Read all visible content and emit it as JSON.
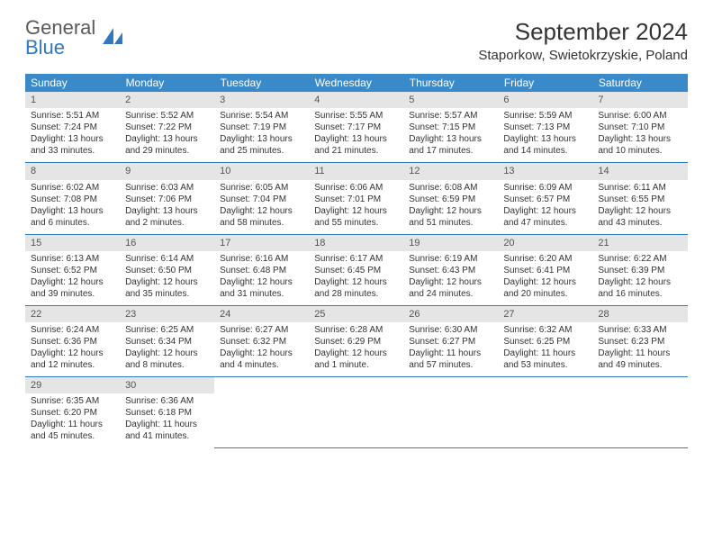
{
  "logo": {
    "general": "General",
    "blue": "Blue"
  },
  "title": "September 2024",
  "location": "Staporkow, Swietokrzyskie, Poland",
  "header_bg": "#3a8ac9",
  "day_names": [
    "Sunday",
    "Monday",
    "Tuesday",
    "Wednesday",
    "Thursday",
    "Friday",
    "Saturday"
  ],
  "days": [
    {
      "n": "1",
      "sr": "5:51 AM",
      "ss": "7:24 PM",
      "dl": "13 hours and 33 minutes."
    },
    {
      "n": "2",
      "sr": "5:52 AM",
      "ss": "7:22 PM",
      "dl": "13 hours and 29 minutes."
    },
    {
      "n": "3",
      "sr": "5:54 AM",
      "ss": "7:19 PM",
      "dl": "13 hours and 25 minutes."
    },
    {
      "n": "4",
      "sr": "5:55 AM",
      "ss": "7:17 PM",
      "dl": "13 hours and 21 minutes."
    },
    {
      "n": "5",
      "sr": "5:57 AM",
      "ss": "7:15 PM",
      "dl": "13 hours and 17 minutes."
    },
    {
      "n": "6",
      "sr": "5:59 AM",
      "ss": "7:13 PM",
      "dl": "13 hours and 14 minutes."
    },
    {
      "n": "7",
      "sr": "6:00 AM",
      "ss": "7:10 PM",
      "dl": "13 hours and 10 minutes."
    },
    {
      "n": "8",
      "sr": "6:02 AM",
      "ss": "7:08 PM",
      "dl": "13 hours and 6 minutes."
    },
    {
      "n": "9",
      "sr": "6:03 AM",
      "ss": "7:06 PM",
      "dl": "13 hours and 2 minutes."
    },
    {
      "n": "10",
      "sr": "6:05 AM",
      "ss": "7:04 PM",
      "dl": "12 hours and 58 minutes."
    },
    {
      "n": "11",
      "sr": "6:06 AM",
      "ss": "7:01 PM",
      "dl": "12 hours and 55 minutes."
    },
    {
      "n": "12",
      "sr": "6:08 AM",
      "ss": "6:59 PM",
      "dl": "12 hours and 51 minutes."
    },
    {
      "n": "13",
      "sr": "6:09 AM",
      "ss": "6:57 PM",
      "dl": "12 hours and 47 minutes."
    },
    {
      "n": "14",
      "sr": "6:11 AM",
      "ss": "6:55 PM",
      "dl": "12 hours and 43 minutes."
    },
    {
      "n": "15",
      "sr": "6:13 AM",
      "ss": "6:52 PM",
      "dl": "12 hours and 39 minutes."
    },
    {
      "n": "16",
      "sr": "6:14 AM",
      "ss": "6:50 PM",
      "dl": "12 hours and 35 minutes."
    },
    {
      "n": "17",
      "sr": "6:16 AM",
      "ss": "6:48 PM",
      "dl": "12 hours and 31 minutes."
    },
    {
      "n": "18",
      "sr": "6:17 AM",
      "ss": "6:45 PM",
      "dl": "12 hours and 28 minutes."
    },
    {
      "n": "19",
      "sr": "6:19 AM",
      "ss": "6:43 PM",
      "dl": "12 hours and 24 minutes."
    },
    {
      "n": "20",
      "sr": "6:20 AM",
      "ss": "6:41 PM",
      "dl": "12 hours and 20 minutes."
    },
    {
      "n": "21",
      "sr": "6:22 AM",
      "ss": "6:39 PM",
      "dl": "12 hours and 16 minutes."
    },
    {
      "n": "22",
      "sr": "6:24 AM",
      "ss": "6:36 PM",
      "dl": "12 hours and 12 minutes."
    },
    {
      "n": "23",
      "sr": "6:25 AM",
      "ss": "6:34 PM",
      "dl": "12 hours and 8 minutes."
    },
    {
      "n": "24",
      "sr": "6:27 AM",
      "ss": "6:32 PM",
      "dl": "12 hours and 4 minutes."
    },
    {
      "n": "25",
      "sr": "6:28 AM",
      "ss": "6:29 PM",
      "dl": "12 hours and 1 minute."
    },
    {
      "n": "26",
      "sr": "6:30 AM",
      "ss": "6:27 PM",
      "dl": "11 hours and 57 minutes."
    },
    {
      "n": "27",
      "sr": "6:32 AM",
      "ss": "6:25 PM",
      "dl": "11 hours and 53 minutes."
    },
    {
      "n": "28",
      "sr": "6:33 AM",
      "ss": "6:23 PM",
      "dl": "11 hours and 49 minutes."
    },
    {
      "n": "29",
      "sr": "6:35 AM",
      "ss": "6:20 PM",
      "dl": "11 hours and 45 minutes."
    },
    {
      "n": "30",
      "sr": "6:36 AM",
      "ss": "6:18 PM",
      "dl": "11 hours and 41 minutes."
    }
  ],
  "labels": {
    "sunrise": "Sunrise:",
    "sunset": "Sunset:",
    "daylight": "Daylight:"
  }
}
